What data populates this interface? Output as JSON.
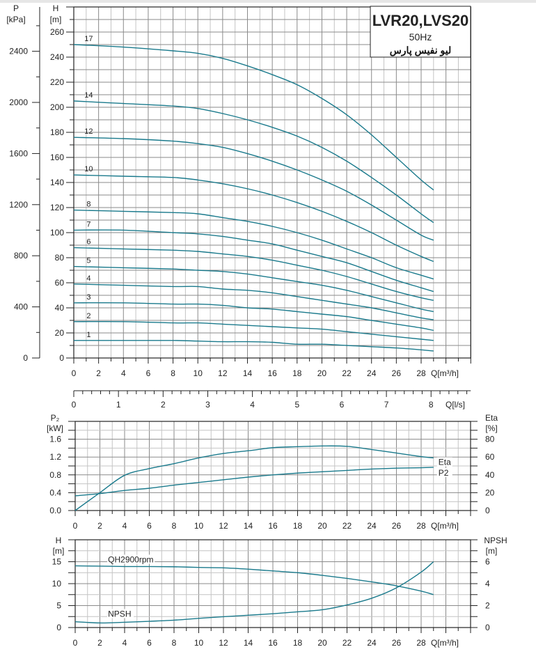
{
  "title_box": {
    "model": "LVR20,LVS20",
    "frequency": "50Hz",
    "brand": "لیو نفیس پارس"
  },
  "colors": {
    "curve": "#1a7a8c",
    "grid_major": "#8a8a8a",
    "grid_minor": "#c4c4c4",
    "axis": "#222222"
  },
  "chart_data": [
    {
      "type": "line",
      "title": "",
      "ylabel": "H",
      "yunit": "[m]",
      "y2label": "P",
      "y2unit": "[kPa]",
      "xlabel": "Q[m³/h]",
      "x2label": "Q[l/s]",
      "xlim": [
        0,
        32
      ],
      "ylim": [
        0,
        280
      ],
      "xticks": [
        0,
        2,
        4,
        6,
        8,
        10,
        12,
        14,
        16,
        18,
        20,
        22,
        24,
        26,
        28
      ],
      "yticks": [
        0,
        20,
        40,
        60,
        80,
        100,
        120,
        140,
        160,
        180,
        200,
        220,
        240,
        260
      ],
      "y2ticks": [
        0,
        400,
        800,
        1200,
        1600,
        2000,
        2400
      ],
      "x2ticks": [
        0,
        1,
        2,
        3,
        4,
        5,
        6,
        7,
        8
      ],
      "grid": true,
      "x": [
        0,
        4,
        8,
        10,
        12,
        14,
        16,
        18,
        20,
        22,
        24,
        26,
        28,
        29
      ],
      "series": [
        {
          "name": "17",
          "values": [
            250,
            248,
            245,
            243,
            239,
            233,
            226,
            218,
            207,
            194,
            178,
            160,
            142,
            134
          ]
        },
        {
          "name": "14",
          "values": [
            205,
            203,
            201,
            199,
            195,
            190,
            184,
            177,
            168,
            157,
            144,
            130,
            115,
            108
          ]
        },
        {
          "name": "12",
          "values": [
            176,
            175,
            173,
            171,
            168,
            163,
            157,
            150,
            142,
            133,
            122,
            110,
            98,
            94
          ]
        },
        {
          "name": "10",
          "values": [
            146,
            145,
            144,
            142,
            139,
            135,
            130,
            124,
            117,
            109,
            100,
            90,
            81,
            77
          ]
        },
        {
          "name": "8",
          "values": [
            118,
            117,
            116,
            115,
            112,
            109,
            105,
            100,
            94,
            87,
            80,
            72,
            66,
            63
          ]
        },
        {
          "name": "7",
          "values": [
            102,
            102,
            100,
            99,
            97,
            94,
            91,
            86,
            81,
            76,
            69,
            62,
            56,
            53
          ]
        },
        {
          "name": "6",
          "values": [
            88,
            87,
            86,
            85,
            83,
            81,
            78,
            74,
            70,
            65,
            59,
            53,
            48,
            46
          ]
        },
        {
          "name": "5",
          "values": [
            73,
            72,
            71,
            70,
            69,
            67,
            64,
            61,
            58,
            54,
            49,
            44,
            39,
            37
          ]
        },
        {
          "name": "4",
          "values": [
            59,
            58,
            57,
            57,
            55,
            54,
            52,
            49,
            46,
            43,
            40,
            36,
            32,
            30.5
          ]
        },
        {
          "name": "3",
          "values": [
            44,
            44,
            43,
            43,
            42,
            40,
            39,
            37,
            35,
            33,
            30,
            27,
            24,
            22
          ]
        },
        {
          "name": "2",
          "values": [
            29,
            29,
            28,
            28,
            27,
            26,
            25,
            24,
            23,
            21,
            19,
            17,
            15,
            14
          ]
        },
        {
          "name": "1",
          "values": [
            14,
            14,
            14,
            13.5,
            13,
            13,
            12.5,
            11,
            11,
            10,
            9,
            8,
            6.5,
            5.6
          ]
        }
      ]
    },
    {
      "type": "line",
      "ylabel": "P₂",
      "yunit": "[kW]",
      "y2label": "Eta",
      "y2unit": "[%]",
      "xlabel": "Q[m³/h]",
      "xlim": [
        0,
        32
      ],
      "ylim": [
        0,
        2.0
      ],
      "y2lim": [
        0,
        100
      ],
      "xticks": [
        0,
        2,
        4,
        6,
        8,
        10,
        12,
        14,
        16,
        18,
        20,
        22,
        24,
        26,
        28
      ],
      "yticks": [
        "0.0",
        "0.4",
        "0.8",
        "1.2",
        "1.6"
      ],
      "y2ticks": [
        0,
        20,
        40,
        60,
        80
      ],
      "grid": true,
      "x": [
        0,
        2,
        4,
        6,
        8,
        10,
        12,
        14,
        16,
        18,
        20,
        22,
        24,
        26,
        28,
        29
      ],
      "series": [
        {
          "name": "Eta",
          "axis": "right",
          "values": [
            0,
            20,
            39.5,
            47,
            52.6,
            59,
            64,
            67,
            70.5,
            71.6,
            72.4,
            72,
            68.4,
            64.5,
            60.5,
            59
          ]
        },
        {
          "name": "P2",
          "axis": "left",
          "values": [
            0.33,
            0.38,
            0.45,
            0.5,
            0.57,
            0.63,
            0.69,
            0.75,
            0.8,
            0.84,
            0.87,
            0.9,
            0.93,
            0.95,
            0.96,
            0.97
          ]
        }
      ]
    },
    {
      "type": "line",
      "ylabel": "H",
      "yunit": "[m]",
      "y2label": "NPSH",
      "y2unit": "[m]",
      "xlabel": "Q[m³/h]",
      "xlim": [
        0,
        32
      ],
      "ylim": [
        0,
        20
      ],
      "y2lim": [
        0,
        8
      ],
      "xticks": [
        0,
        2,
        4,
        6,
        8,
        10,
        12,
        14,
        16,
        18,
        20,
        22,
        24,
        26,
        28
      ],
      "yticks": [
        0,
        5,
        10,
        15
      ],
      "y2ticks": [
        0,
        2,
        4,
        6
      ],
      "grid": true,
      "x": [
        0,
        2,
        4,
        6,
        8,
        10,
        12,
        14,
        16,
        18,
        20,
        22,
        24,
        26,
        28,
        29
      ],
      "series": [
        {
          "name": "QH2900rpm",
          "axis": "left",
          "values": [
            14.05,
            14,
            13.9,
            13.9,
            13.85,
            13.7,
            13.6,
            13.3,
            12.9,
            12.5,
            11.9,
            11.2,
            10.4,
            9.5,
            8.3,
            7.5
          ]
        },
        {
          "name": "NPSH",
          "axis": "right",
          "values": [
            0.53,
            0.42,
            0.48,
            0.57,
            0.67,
            0.84,
            0.99,
            1.12,
            1.26,
            1.43,
            1.62,
            2.06,
            2.67,
            3.62,
            5.05,
            6.0
          ]
        }
      ]
    }
  ]
}
